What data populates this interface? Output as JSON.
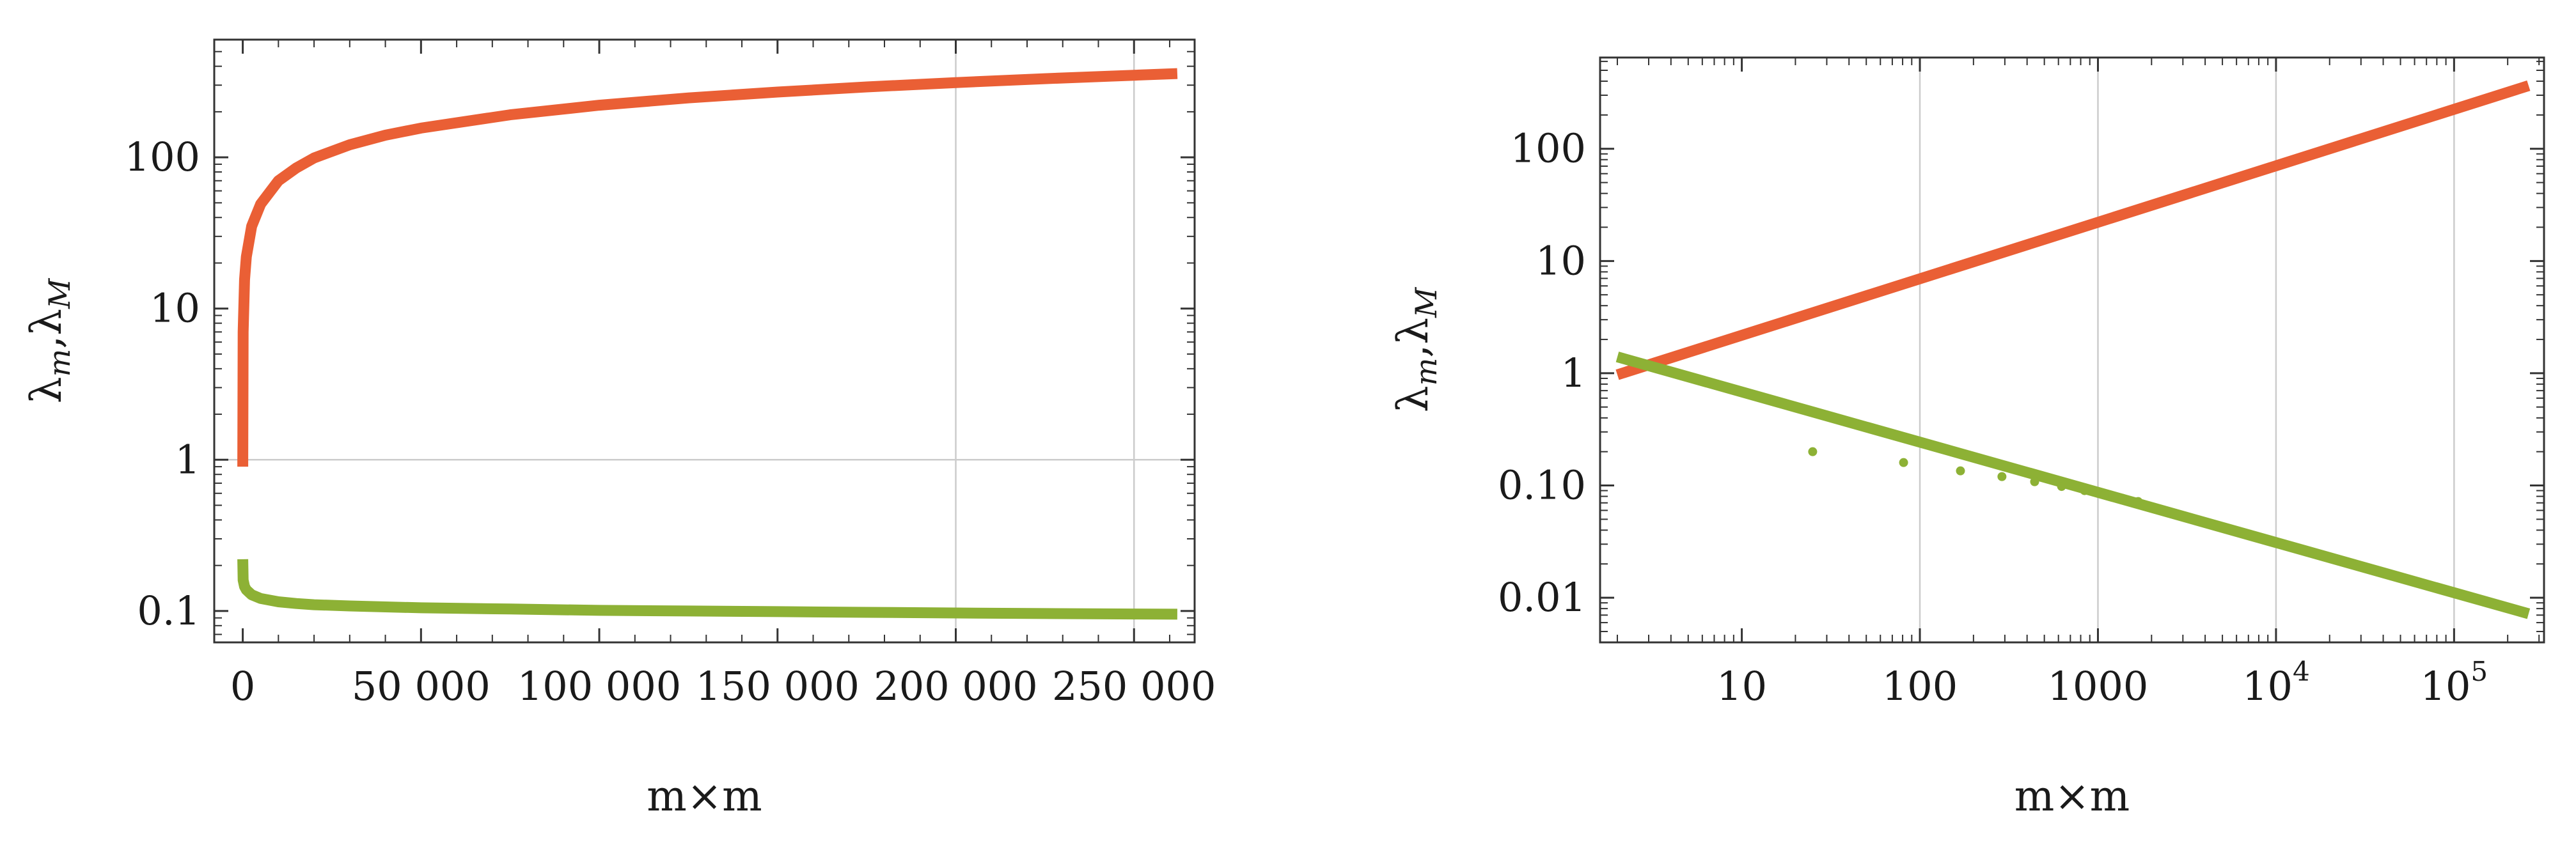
{
  "figure": {
    "panels": 2
  },
  "colors": {
    "upper": "#ea5f35",
    "lower": "#8db135",
    "frame": "#333333",
    "grid": "#cccccc",
    "background": "#ffffff"
  },
  "chart_data": [
    {
      "type": "line",
      "xlabel": "m×m",
      "ylabel_main": "λ",
      "ylabel_sub1": "m",
      "ylabel_sep": ",",
      "ylabel_sub2": "M",
      "x_scale": "linear",
      "y_scale": "log",
      "xlim": [
        -8000,
        267000
      ],
      "ylim": [
        0.062,
        600
      ],
      "x_ticks": [
        {
          "value": 0,
          "label": "0"
        },
        {
          "value": 50000,
          "label": "50 000"
        },
        {
          "value": 100000,
          "label": "100 000"
        },
        {
          "value": 150000,
          "label": "150 000"
        },
        {
          "value": 200000,
          "label": "200 000"
        },
        {
          "value": 250000,
          "label": "250 000"
        }
      ],
      "y_ticks": [
        {
          "value": 0.1,
          "label": "0.1"
        },
        {
          "value": 1,
          "label": "1"
        },
        {
          "value": 10,
          "label": "10"
        },
        {
          "value": 100,
          "label": "100"
        }
      ],
      "x_gridlines": [
        200000,
        250000
      ],
      "y_gridlines": [
        1
      ],
      "series": [
        {
          "role": "upper",
          "x": [
            1,
            100,
            500,
            1000,
            2500,
            5000,
            10000,
            15000,
            20000,
            30000,
            40000,
            50000,
            75000,
            100000,
            125000,
            150000,
            175000,
            200000,
            225000,
            250000,
            262144
          ],
          "y": [
            0.9,
            7,
            15.5,
            22,
            35,
            49,
            70,
            85,
            99,
            121,
            140,
            156,
            191,
            221,
            247,
            270,
            292,
            312,
            331,
            349,
            358
          ]
        },
        {
          "role": "lower",
          "x": [
            1,
            100,
            500,
            1000,
            2500,
            5000,
            10000,
            15000,
            20000,
            30000,
            50000,
            75000,
            100000,
            125000,
            150000,
            175000,
            200000,
            225000,
            250000,
            262144
          ],
          "y": [
            0.22,
            0.16,
            0.145,
            0.138,
            0.128,
            0.121,
            0.115,
            0.112,
            0.11,
            0.108,
            0.105,
            0.103,
            0.101,
            0.1,
            0.099,
            0.098,
            0.097,
            0.0962,
            0.0955,
            0.0952
          ]
        }
      ]
    },
    {
      "type": "line",
      "xlabel": "m×m",
      "ylabel_main": "λ",
      "ylabel_sub1": "m",
      "ylabel_sep": ",",
      "ylabel_sub2": "M",
      "x_scale": "log",
      "y_scale": "log",
      "xlim": [
        1.6,
        320000
      ],
      "ylim": [
        0.004,
        650
      ],
      "x_ticks": [
        {
          "value": 10,
          "label": "10"
        },
        {
          "value": 100,
          "label": "100"
        },
        {
          "value": 1000,
          "label": "1000"
        },
        {
          "value": 10000,
          "label": "10",
          "sup": "4"
        },
        {
          "value": 100000,
          "label": "10",
          "sup": "5"
        }
      ],
      "y_ticks": [
        {
          "value": 0.01,
          "label": "0.01"
        },
        {
          "value": 0.1,
          "label": "0.10"
        },
        {
          "value": 1,
          "label": "1"
        },
        {
          "value": 10,
          "label": "10"
        },
        {
          "value": 100,
          "label": "100"
        }
      ],
      "x_gridlines": [
        100,
        1000,
        10000,
        100000
      ],
      "y_gridlines": [],
      "series": [
        {
          "role": "upper",
          "x": [
            2,
            262144
          ],
          "y": [
            0.97,
            365
          ]
        },
        {
          "role": "lower",
          "x": [
            2,
            262144
          ],
          "y": [
            1.4,
            0.0072
          ]
        },
        {
          "role": "lower-points",
          "x": [
            25,
            81,
            169,
            289,
            441,
            625,
            841,
            1089,
            1369,
            1681
          ],
          "y": [
            0.2,
            0.16,
            0.135,
            0.12,
            0.108,
            0.098,
            0.09,
            0.083,
            0.077,
            0.072
          ]
        }
      ]
    }
  ]
}
